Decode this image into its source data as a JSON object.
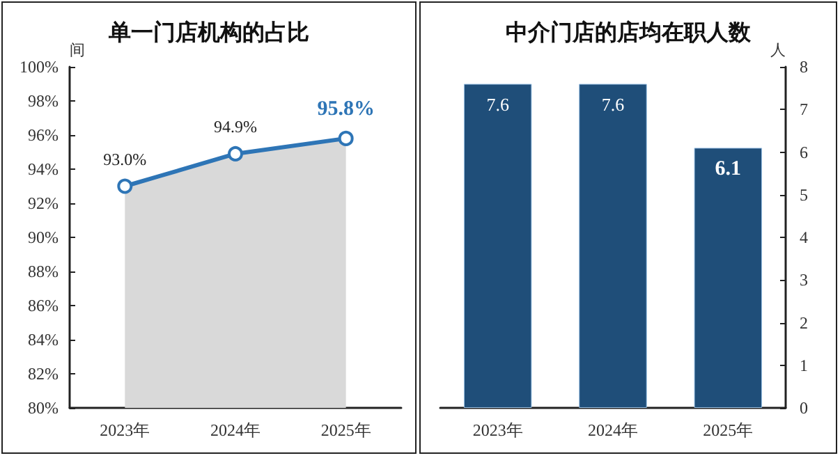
{
  "chart_data": [
    {
      "type": "area",
      "title": "单一门店机构的占比",
      "ylabel": "间",
      "categories": [
        "2023年",
        "2024年",
        "2025年"
      ],
      "series": [
        {
          "color": "#2e75b6",
          "values": [
            93.0,
            94.9,
            95.8
          ],
          "value_labels": [
            "93.0%",
            "94.9%",
            "95.8%"
          ]
        }
      ],
      "ylim": [
        80,
        100
      ],
      "yticks": [
        {
          "value": 80,
          "label": "80%"
        },
        {
          "value": 82,
          "label": "82%"
        },
        {
          "value": 84,
          "label": "84%"
        },
        {
          "value": 86,
          "label": "86%"
        },
        {
          "value": 88,
          "label": "88%"
        },
        {
          "value": 90,
          "label": "90%"
        },
        {
          "value": 92,
          "label": "92%"
        },
        {
          "value": 94,
          "label": "94%"
        },
        {
          "value": 96,
          "label": "96%"
        },
        {
          "value": 98,
          "label": "98%"
        },
        {
          "value": 100,
          "label": "100%"
        }
      ],
      "marker": "circle"
    },
    {
      "type": "bar",
      "title": "中介门店的店均在职人数",
      "y2label": "人",
      "categories": [
        "2023年",
        "2024年",
        "2025年"
      ],
      "series": [
        {
          "color": "#1f4e79",
          "values": [
            7.6,
            7.6,
            6.1
          ],
          "axis": "y2"
        }
      ],
      "y2lim": [
        0,
        8
      ],
      "y2ticks": [
        0,
        1,
        2,
        3,
        4,
        5,
        6,
        7,
        8
      ],
      "data_labels": true
    }
  ]
}
